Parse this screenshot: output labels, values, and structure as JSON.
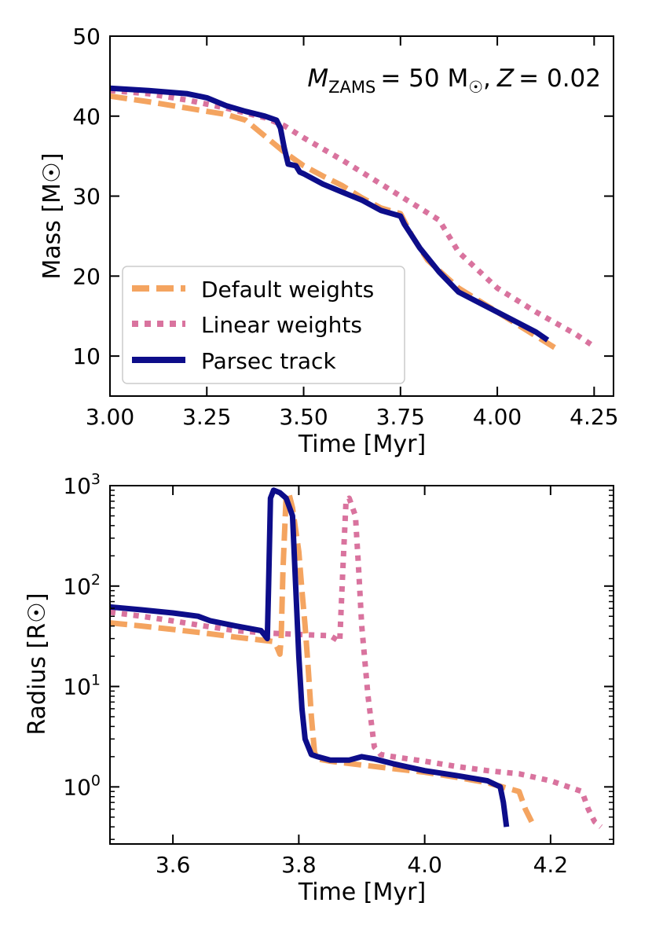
{
  "chart_data": [
    {
      "type": "line",
      "title": "",
      "annotation": {
        "m_symbol": "M",
        "m_subscript": "ZAMS",
        "m_value": "= 50 M",
        "sun": "☉",
        "sep": ",",
        "z_symbol": "Z",
        "z_value": "= 0.02"
      },
      "xlabel": "Time [Myr]",
      "ylabel": "Mass [M☉]",
      "xlim": [
        3.0,
        4.3
      ],
      "ylim": [
        5,
        50
      ],
      "xticks": [
        3.0,
        3.25,
        3.5,
        3.75,
        4.0,
        4.25
      ],
      "xtick_labels": [
        "3.00",
        "3.25",
        "3.50",
        "3.75",
        "4.00",
        "4.25"
      ],
      "yticks": [
        10,
        20,
        30,
        40,
        50
      ],
      "ytick_labels": [
        "10",
        "20",
        "30",
        "40",
        "50"
      ],
      "legend": {
        "position": "lower-left",
        "entries": [
          "Default weights",
          "Linear weights",
          "Parsec track"
        ]
      },
      "series": [
        {
          "name": "Default weights",
          "style": "dashed",
          "color": "#f4a460",
          "x": [
            3.0,
            3.1,
            3.2,
            3.3,
            3.35,
            3.4,
            3.45,
            3.5,
            3.55,
            3.6,
            3.65,
            3.7,
            3.75,
            3.78,
            3.82,
            3.9,
            4.0,
            4.1,
            4.15
          ],
          "y": [
            42.5,
            41.8,
            41.0,
            40.2,
            39.5,
            37.5,
            35.5,
            33.8,
            32.5,
            31.3,
            29.8,
            28.5,
            27.8,
            25.0,
            22.0,
            18.5,
            15.5,
            12.5,
            11.0
          ]
        },
        {
          "name": "Linear weights",
          "style": "dotted",
          "color": "#d9739e",
          "x": [
            3.0,
            3.1,
            3.2,
            3.3,
            3.4,
            3.45,
            3.5,
            3.6,
            3.7,
            3.8,
            3.85,
            3.9,
            4.0,
            4.1,
            4.2,
            4.25
          ],
          "y": [
            43.2,
            42.8,
            42.0,
            41.0,
            39.8,
            38.8,
            37.3,
            34.5,
            31.5,
            28.5,
            27.0,
            23.0,
            18.5,
            15.5,
            12.8,
            11.2
          ]
        },
        {
          "name": "Parsec track",
          "style": "solid",
          "color": "#0d0d8a",
          "x": [
            3.0,
            3.1,
            3.2,
            3.25,
            3.3,
            3.35,
            3.4,
            3.43,
            3.44,
            3.45,
            3.46,
            3.48,
            3.49,
            3.5,
            3.55,
            3.6,
            3.65,
            3.7,
            3.75,
            3.76,
            3.78,
            3.8,
            3.85,
            3.9,
            4.0,
            4.1,
            4.13
          ],
          "y": [
            43.5,
            43.2,
            42.8,
            42.3,
            41.3,
            40.6,
            40.0,
            39.5,
            38.5,
            36.0,
            34.0,
            33.8,
            33.0,
            32.8,
            31.5,
            30.5,
            29.5,
            28.2,
            27.5,
            26.5,
            25.0,
            23.5,
            20.5,
            18.0,
            15.5,
            13.0,
            12.0
          ]
        }
      ]
    },
    {
      "type": "line",
      "title": "",
      "xlabel": "Time [Myr]",
      "ylabel": "Radius [R☉]",
      "yscale": "log",
      "xlim": [
        3.5,
        4.3
      ],
      "ylim": [
        0.27,
        1000
      ],
      "xticks": [
        3.6,
        3.8,
        4.0,
        4.2
      ],
      "xtick_labels": [
        "3.6",
        "3.8",
        "4.0",
        "4.2"
      ],
      "yticks": [
        1,
        10,
        100,
        1000
      ],
      "ytick_base": "10",
      "ytick_exponents": [
        "0",
        "1",
        "2",
        "3"
      ],
      "series": [
        {
          "name": "Default weights",
          "style": "dashed",
          "color": "#f4a460",
          "x": [
            3.5,
            3.55,
            3.6,
            3.65,
            3.7,
            3.74,
            3.76,
            3.765,
            3.77,
            3.772,
            3.775,
            3.78,
            3.785,
            3.79,
            3.8,
            3.805,
            3.81,
            3.815,
            3.82,
            3.825,
            3.83,
            3.85,
            3.9,
            4.0,
            4.05,
            4.1,
            4.15,
            4.16,
            4.17
          ],
          "y": [
            43,
            40,
            37,
            34,
            31,
            29,
            28,
            25,
            21,
            30,
            150,
            800,
            800,
            600,
            220,
            90,
            40,
            15,
            5,
            2.2,
            1.9,
            1.8,
            1.65,
            1.4,
            1.25,
            1.1,
            0.9,
            0.6,
            0.45
          ]
        },
        {
          "name": "Linear weights",
          "style": "dotted",
          "color": "#d9739e",
          "x": [
            3.5,
            3.55,
            3.6,
            3.65,
            3.7,
            3.75,
            3.8,
            3.85,
            3.865,
            3.87,
            3.875,
            3.88,
            3.89,
            3.895,
            3.9,
            3.91,
            3.92,
            3.93,
            3.95,
            4.0,
            4.05,
            4.1,
            4.15,
            4.2,
            4.25,
            4.26,
            4.27,
            4.28
          ],
          "y": [
            55,
            50,
            45,
            40,
            36,
            34,
            33,
            32,
            28,
            150,
            700,
            750,
            500,
            150,
            40,
            8,
            2.5,
            2.1,
            2.0,
            1.8,
            1.6,
            1.45,
            1.35,
            1.15,
            0.9,
            0.6,
            0.45,
            0.4
          ]
        },
        {
          "name": "Parsec track",
          "style": "solid",
          "color": "#0d0d8a",
          "x": [
            3.5,
            3.55,
            3.6,
            3.64,
            3.66,
            3.7,
            3.74,
            3.75,
            3.752,
            3.755,
            3.76,
            3.77,
            3.78,
            3.79,
            3.795,
            3.8,
            3.805,
            3.81,
            3.82,
            3.83,
            3.85,
            3.88,
            3.9,
            3.92,
            3.95,
            4.0,
            4.05,
            4.1,
            4.12,
            4.125,
            4.13
          ],
          "y": [
            62,
            58,
            54,
            50,
            45,
            40,
            36,
            30,
            100,
            750,
            900,
            850,
            750,
            500,
            100,
            20,
            6,
            3,
            2.1,
            2.0,
            1.85,
            1.85,
            2.0,
            1.9,
            1.7,
            1.45,
            1.3,
            1.15,
            1.0,
            0.7,
            0.4
          ]
        }
      ]
    }
  ]
}
